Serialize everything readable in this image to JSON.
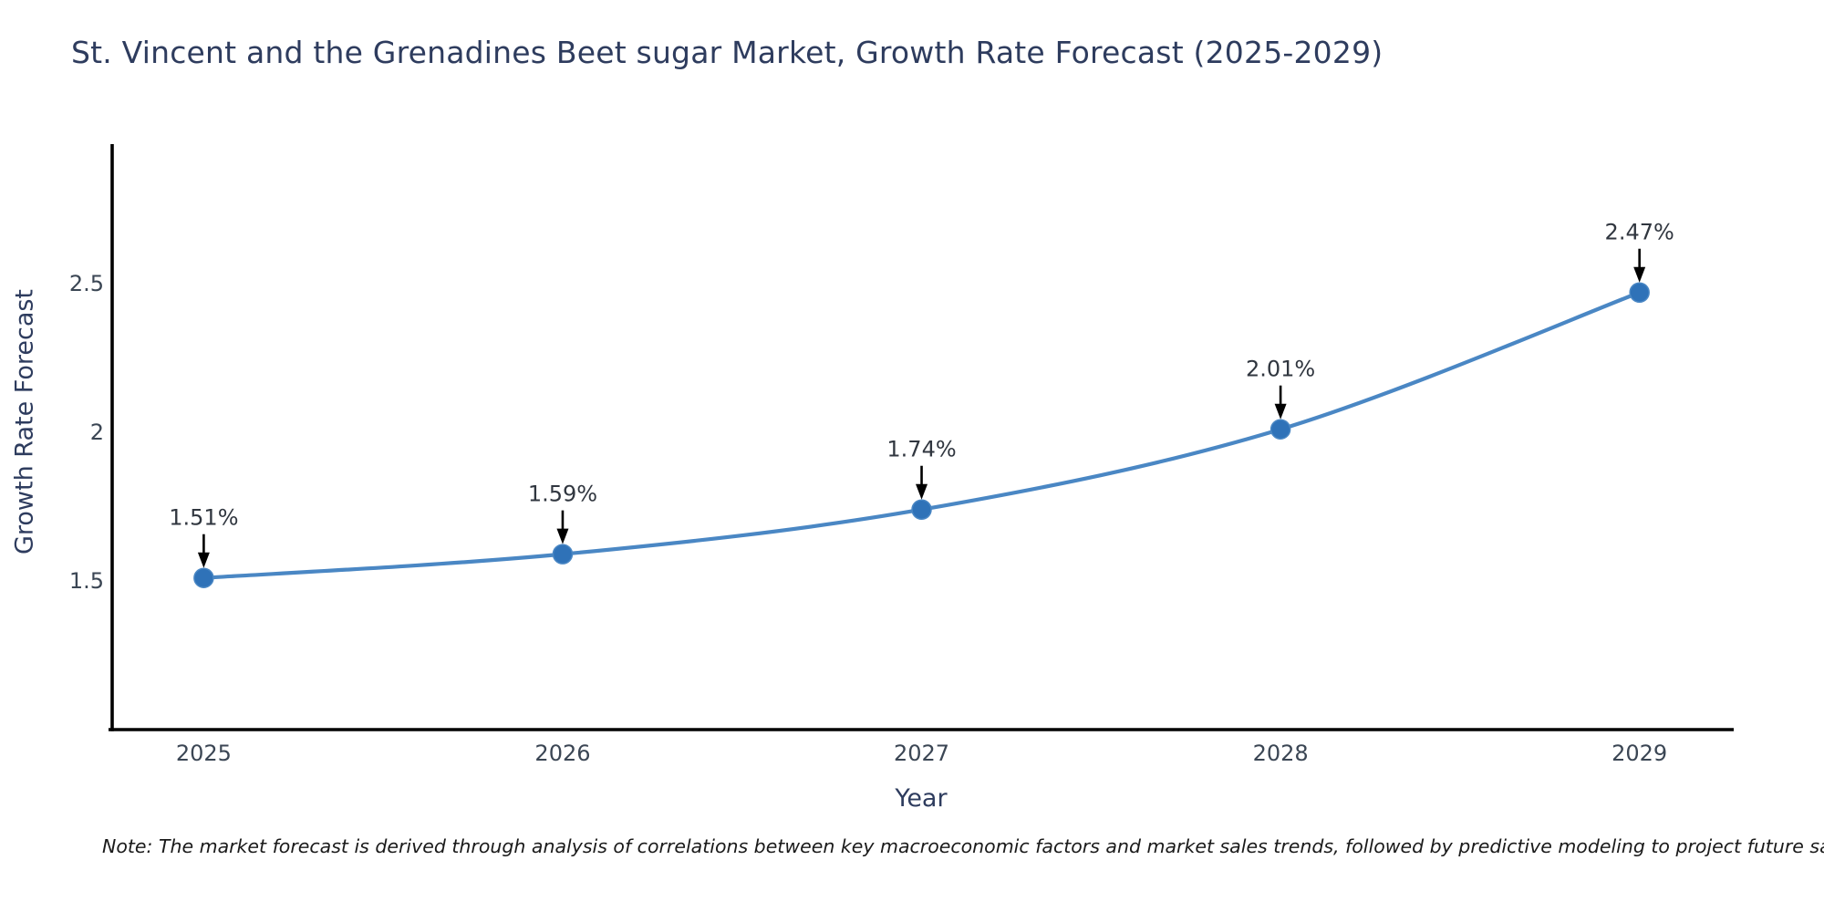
{
  "chart_data": {
    "type": "line",
    "title": "St. Vincent and the Grenadines Beet sugar Market, Growth Rate Forecast (2025-2029)",
    "xlabel": "Year",
    "ylabel": "Growth Rate Forecast",
    "x": [
      2025,
      2026,
      2027,
      2028,
      2029
    ],
    "xtick_labels": [
      "2025",
      "2026",
      "2027",
      "2028",
      "2029"
    ],
    "series": [
      {
        "name": "Growth Rate Forecast",
        "values": [
          1.51,
          1.59,
          1.74,
          2.01,
          2.47
        ],
        "point_labels": [
          "1.51%",
          "1.59%",
          "1.74%",
          "2.01%",
          "2.47%"
        ]
      }
    ],
    "yticks": [
      1.5,
      2.0,
      2.5
    ],
    "ytick_labels": [
      "1.5",
      "2",
      "2.5"
    ],
    "xlim": [
      2024.75,
      2029.26
    ],
    "ylim": [
      1.0,
      2.963
    ],
    "grid": false,
    "legend": "none",
    "line_shape": "spline",
    "note": "Note: The market forecast is derived through analysis of correlations between key macroeconomic factors and market sales trends, followed by predictive modeling to project future sales",
    "colors": {
      "line": "#4a87c4",
      "marker": "#2f72b8",
      "marker_edge": "#4a87c4",
      "axis": "#000000",
      "tick_text": "#3b4654",
      "title_text": "#2e3c5e",
      "annotation_text": "#30363f",
      "arrow": "#000000",
      "background": "#ffffff"
    }
  }
}
